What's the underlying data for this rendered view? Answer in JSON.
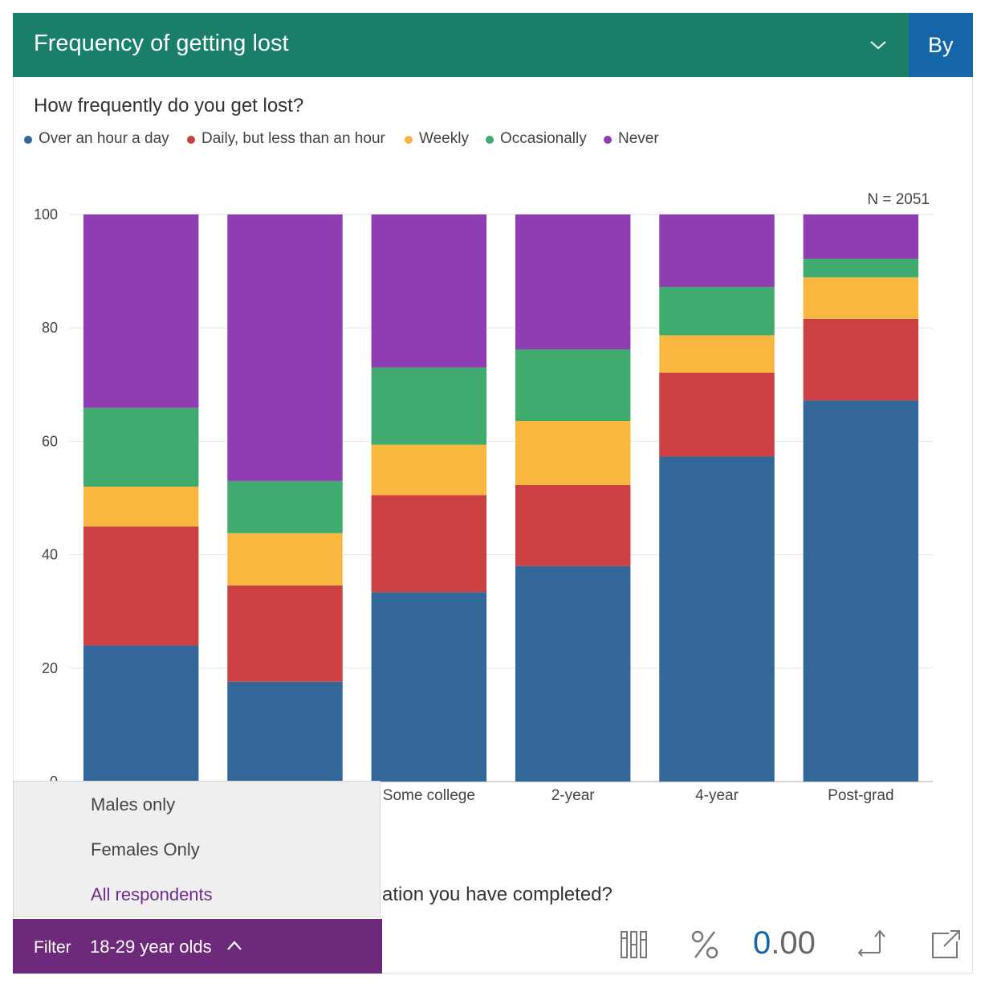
{
  "header": {
    "title": "Frequency of getting lost",
    "by_label": "By"
  },
  "question": "How frequently do you get lost?",
  "colors": {
    "header_bg": "#1a7f68",
    "by_bg": "#1466a8",
    "filter_bg": "#6e2a7a",
    "active_option": "#6e2a8a"
  },
  "legend": [
    {
      "label": "Over an hour a day",
      "color": "#336699"
    },
    {
      "label": "Daily, but less than an hour",
      "color": "#cc3f42"
    },
    {
      "label": "Weekly",
      "color": "#fab73f"
    },
    {
      "label": "Occasionally",
      "color": "#3fab6e"
    },
    {
      "label": "Never",
      "color": "#8f3db3"
    }
  ],
  "sample_size": "N = 2051",
  "chart_data": {
    "type": "bar",
    "stacked": true,
    "categories": [
      "",
      "",
      "Some  college",
      "2-year",
      "4-year",
      "Post-grad"
    ],
    "ylim": [
      0,
      100
    ],
    "yticks": [
      "0",
      "20",
      "40",
      "60",
      "80",
      "100"
    ],
    "series": [
      {
        "name": "Over an hour a day",
        "values": [
          24,
          17.6,
          33.4,
          38,
          57.3,
          67.2
        ]
      },
      {
        "name": "Daily, but less than an hour",
        "values": [
          21,
          17,
          17.1,
          14.3,
          14.8,
          14.4
        ]
      },
      {
        "name": "Weekly",
        "values": [
          7,
          9.2,
          8.9,
          11.3,
          6.6,
          7.3
        ]
      },
      {
        "name": "Occasionally",
        "values": [
          13.9,
          9.2,
          13.6,
          12.6,
          8.5,
          3.3
        ]
      },
      {
        "name": "Never",
        "values": [
          34.1,
          47,
          27,
          23.8,
          12.8,
          7.8
        ]
      }
    ],
    "grid": true
  },
  "second_question_partial": "ation you have completed?",
  "filter": {
    "label": "Filter",
    "value": "18-29 year olds",
    "options": [
      "Males only",
      "Females Only",
      "All respondents"
    ],
    "active_option": "All respondents"
  },
  "toolbar": {
    "decimals_lead": "0",
    "decimals_rest": ".00"
  },
  "icons": [
    "chevron-down-icon",
    "columns-icon",
    "percent-icon",
    "swap-axes-icon",
    "external-link-icon",
    "chevron-up-icon"
  ]
}
